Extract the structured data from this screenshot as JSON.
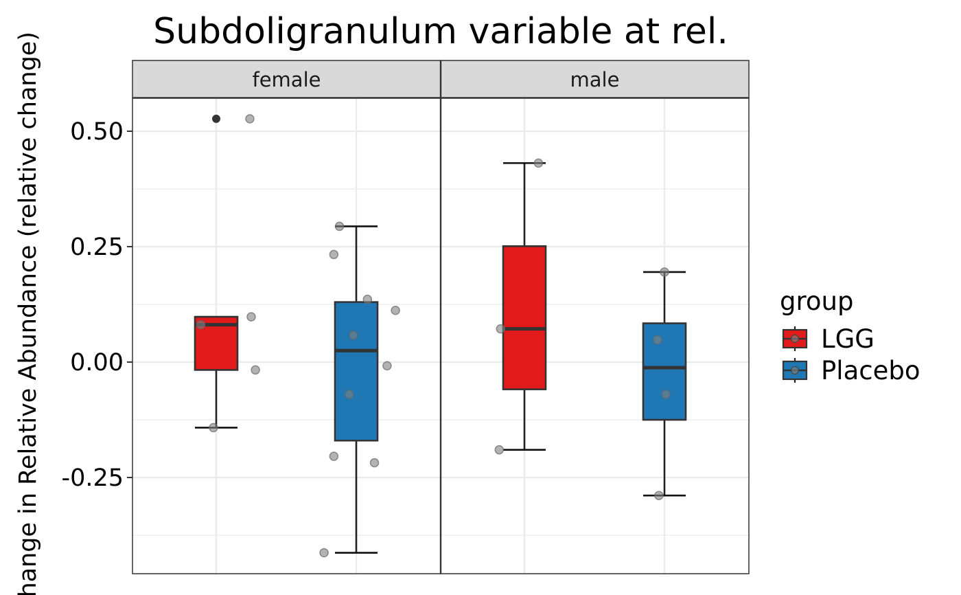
{
  "chart_data": {
    "type": "box",
    "title": "Subdoligranulum variable at rel.",
    "ylabel": "Change in Relative Abundance (relative change)",
    "xlabel": "",
    "ylim": [
      -0.46,
      0.57
    ],
    "yticks": [
      -0.25,
      0.0,
      0.25,
      0.5
    ],
    "ytick_labels": [
      "-0.25",
      "0.00",
      "0.25",
      "0.50"
    ],
    "grid": true,
    "facets": [
      "female",
      "male"
    ],
    "groups": [
      "LGG",
      "Placebo"
    ],
    "colors": {
      "LGG": "#e31a1c",
      "Placebo": "#1f78b4",
      "points": "#808080",
      "outlier": "#333333",
      "strip_bg": "#d9d9d9",
      "grid": "#ebebeb"
    },
    "legend": {
      "title": "group",
      "position": "right",
      "entries": [
        "LGG",
        "Placebo"
      ]
    },
    "boxes": [
      {
        "facet": "female",
        "group": "LGG",
        "whisker_low": -0.142,
        "q1": -0.017,
        "median": 0.081,
        "q3": 0.098,
        "whisker_high": 0.098,
        "outliers": [
          0.527
        ]
      },
      {
        "facet": "female",
        "group": "Placebo",
        "whisker_low": -0.413,
        "q1": -0.17,
        "median": 0.025,
        "q3": 0.13,
        "whisker_high": 0.294,
        "outliers": []
      },
      {
        "facet": "male",
        "group": "LGG",
        "whisker_low": -0.19,
        "q1": -0.059,
        "median": 0.072,
        "q3": 0.251,
        "whisker_high": 0.431,
        "outliers": []
      },
      {
        "facet": "male",
        "group": "Placebo",
        "whisker_low": -0.289,
        "q1": -0.125,
        "median": -0.012,
        "q3": 0.084,
        "whisker_high": 0.195,
        "outliers": []
      }
    ],
    "points": [
      {
        "facet": "female",
        "group": "LGG",
        "x_offset": -0.11,
        "y": 0.081
      },
      {
        "facet": "female",
        "group": "LGG",
        "x_offset": 0.24,
        "y": 0.527
      },
      {
        "facet": "female",
        "group": "LGG",
        "x_offset": 0.25,
        "y": 0.098
      },
      {
        "facet": "female",
        "group": "LGG",
        "x_offset": 0.28,
        "y": -0.017
      },
      {
        "facet": "female",
        "group": "LGG",
        "x_offset": -0.02,
        "y": -0.142
      },
      {
        "facet": "female",
        "group": "Placebo",
        "x_offset": -0.12,
        "y": 0.294
      },
      {
        "facet": "female",
        "group": "Placebo",
        "x_offset": -0.16,
        "y": 0.233
      },
      {
        "facet": "female",
        "group": "Placebo",
        "x_offset": 0.08,
        "y": 0.136
      },
      {
        "facet": "female",
        "group": "Placebo",
        "x_offset": 0.28,
        "y": 0.112
      },
      {
        "facet": "female",
        "group": "Placebo",
        "x_offset": -0.02,
        "y": 0.058
      },
      {
        "facet": "female",
        "group": "Placebo",
        "x_offset": 0.22,
        "y": -0.008
      },
      {
        "facet": "female",
        "group": "Placebo",
        "x_offset": -0.05,
        "y": -0.07
      },
      {
        "facet": "female",
        "group": "Placebo",
        "x_offset": -0.16,
        "y": -0.204
      },
      {
        "facet": "female",
        "group": "Placebo",
        "x_offset": 0.13,
        "y": -0.218
      },
      {
        "facet": "female",
        "group": "Placebo",
        "x_offset": -0.23,
        "y": -0.413
      },
      {
        "facet": "male",
        "group": "LGG",
        "x_offset": 0.1,
        "y": 0.431
      },
      {
        "facet": "male",
        "group": "LGG",
        "x_offset": -0.17,
        "y": 0.072
      },
      {
        "facet": "male",
        "group": "LGG",
        "x_offset": -0.18,
        "y": -0.19
      },
      {
        "facet": "male",
        "group": "Placebo",
        "x_offset": 0.0,
        "y": 0.195
      },
      {
        "facet": "male",
        "group": "Placebo",
        "x_offset": -0.05,
        "y": 0.048
      },
      {
        "facet": "male",
        "group": "Placebo",
        "x_offset": 0.01,
        "y": -0.07
      },
      {
        "facet": "male",
        "group": "Placebo",
        "x_offset": -0.04,
        "y": -0.289
      }
    ]
  }
}
